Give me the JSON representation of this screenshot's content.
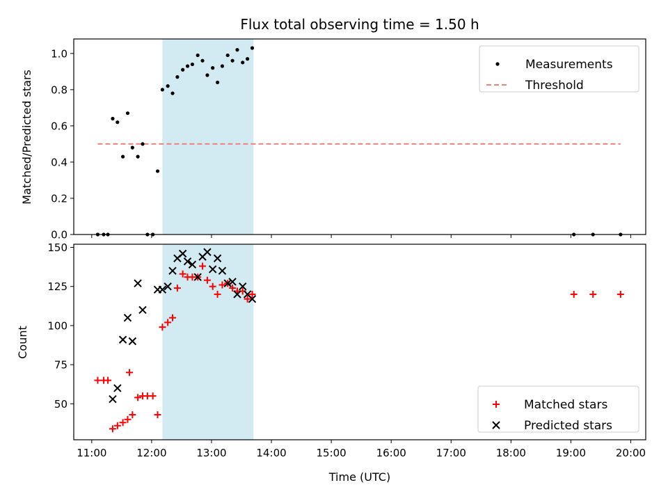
{
  "title": "Flux total observing time = 1.50 h",
  "colors": {
    "shade": "#add8e6",
    "threshold": "#f08080",
    "matched": "#ff0000",
    "predicted": "#000000",
    "measurement": "#000000"
  },
  "chart_data": [
    {
      "type": "scatter",
      "panel": "top",
      "xlabel": "",
      "ylabel": "Matched/Predicted stars",
      "xlim": [
        10.7,
        20.25
      ],
      "ylim": [
        0,
        1.08
      ],
      "yticks": [
        0.0,
        0.2,
        0.4,
        0.6,
        0.8,
        1.0
      ],
      "ytick_labels": [
        "0.0",
        "0.2",
        "0.4",
        "0.6",
        "0.8",
        "1.0"
      ],
      "shaded_interval": [
        12.18,
        13.7
      ],
      "legend": {
        "position": "top-right",
        "entries": [
          "Measurements",
          "Threshold"
        ]
      },
      "threshold": {
        "name": "Threshold",
        "y": 0.5,
        "x_range": [
          11.1,
          19.83
        ]
      },
      "series": [
        {
          "name": "Measurements",
          "marker": "dot",
          "points": [
            [
              11.1,
              0.0
            ],
            [
              11.2,
              0.0
            ],
            [
              11.27,
              0.0
            ],
            [
              11.35,
              0.64
            ],
            [
              11.43,
              0.62
            ],
            [
              11.52,
              0.43
            ],
            [
              11.6,
              0.67
            ],
            [
              11.68,
              0.48
            ],
            [
              11.77,
              0.43
            ],
            [
              11.85,
              0.5
            ],
            [
              11.93,
              0.0
            ],
            [
              12.02,
              0.0
            ],
            [
              12.1,
              0.35
            ],
            [
              12.18,
              0.8
            ],
            [
              12.27,
              0.82
            ],
            [
              12.35,
              0.78
            ],
            [
              12.43,
              0.87
            ],
            [
              12.52,
              0.91
            ],
            [
              12.6,
              0.93
            ],
            [
              12.68,
              0.94
            ],
            [
              12.77,
              0.99
            ],
            [
              12.85,
              0.96
            ],
            [
              12.93,
              0.88
            ],
            [
              13.02,
              0.92
            ],
            [
              13.1,
              0.84
            ],
            [
              13.18,
              0.93
            ],
            [
              13.27,
              0.99
            ],
            [
              13.35,
              0.96
            ],
            [
              13.43,
              1.02
            ],
            [
              13.52,
              0.95
            ],
            [
              13.6,
              0.97
            ],
            [
              13.68,
              1.03
            ],
            [
              19.05,
              0.0
            ],
            [
              19.37,
              0.0
            ],
            [
              19.83,
              0.0
            ]
          ]
        }
      ]
    },
    {
      "type": "scatter",
      "panel": "bottom",
      "xlabel": "Time (UTC)",
      "ylabel": "Count",
      "xlim": [
        10.7,
        20.25
      ],
      "ylim": [
        27,
        152
      ],
      "xticks": [
        11,
        12,
        13,
        14,
        15,
        16,
        17,
        18,
        19,
        20
      ],
      "xtick_labels": [
        "11:00",
        "12:00",
        "13:00",
        "14:00",
        "15:00",
        "16:00",
        "17:00",
        "18:00",
        "19:00",
        "20:00"
      ],
      "yticks": [
        50,
        75,
        100,
        125,
        150
      ],
      "ytick_labels": [
        "50",
        "75",
        "100",
        "125",
        "150"
      ],
      "shaded_interval": [
        12.18,
        13.7
      ],
      "legend": {
        "position": "bottom-right",
        "entries": [
          "Matched stars",
          "Predicted stars"
        ]
      },
      "series": [
        {
          "name": "Matched stars",
          "marker": "plus",
          "points": [
            [
              11.1,
              65
            ],
            [
              11.2,
              65
            ],
            [
              11.27,
              65
            ],
            [
              11.35,
              34
            ],
            [
              11.43,
              36
            ],
            [
              11.52,
              38
            ],
            [
              11.6,
              40
            ],
            [
              11.63,
              70
            ],
            [
              11.68,
              43
            ],
            [
              11.77,
              54
            ],
            [
              11.85,
              55
            ],
            [
              11.93,
              55
            ],
            [
              12.02,
              55
            ],
            [
              12.1,
              43
            ],
            [
              12.18,
              99
            ],
            [
              12.27,
              102
            ],
            [
              12.35,
              105
            ],
            [
              12.43,
              124
            ],
            [
              12.52,
              133
            ],
            [
              12.6,
              131
            ],
            [
              12.68,
              131
            ],
            [
              12.77,
              131
            ],
            [
              12.85,
              138
            ],
            [
              12.93,
              129
            ],
            [
              13.02,
              125
            ],
            [
              13.1,
              120
            ],
            [
              13.18,
              126
            ],
            [
              13.27,
              127
            ],
            [
              13.35,
              124
            ],
            [
              13.43,
              122
            ],
            [
              13.52,
              122
            ],
            [
              13.6,
              117
            ],
            [
              13.68,
              120
            ],
            [
              19.05,
              120
            ],
            [
              19.37,
              120
            ],
            [
              19.83,
              120
            ]
          ]
        },
        {
          "name": "Predicted stars",
          "marker": "x",
          "points": [
            [
              11.35,
              53
            ],
            [
              11.43,
              60
            ],
            [
              11.52,
              91
            ],
            [
              11.6,
              105
            ],
            [
              11.68,
              90
            ],
            [
              11.77,
              127
            ],
            [
              11.85,
              110
            ],
            [
              12.1,
              123
            ],
            [
              12.18,
              123
            ],
            [
              12.27,
              125
            ],
            [
              12.35,
              135
            ],
            [
              12.43,
              143
            ],
            [
              12.52,
              146
            ],
            [
              12.6,
              141
            ],
            [
              12.68,
              139
            ],
            [
              12.77,
              131
            ],
            [
              12.85,
              144
            ],
            [
              12.93,
              147
            ],
            [
              13.02,
              136
            ],
            [
              13.1,
              143
            ],
            [
              13.18,
              135
            ],
            [
              13.27,
              127
            ],
            [
              13.35,
              128
            ],
            [
              13.43,
              120
            ],
            [
              13.52,
              125
            ],
            [
              13.6,
              120
            ],
            [
              13.68,
              117
            ]
          ]
        }
      ]
    }
  ]
}
